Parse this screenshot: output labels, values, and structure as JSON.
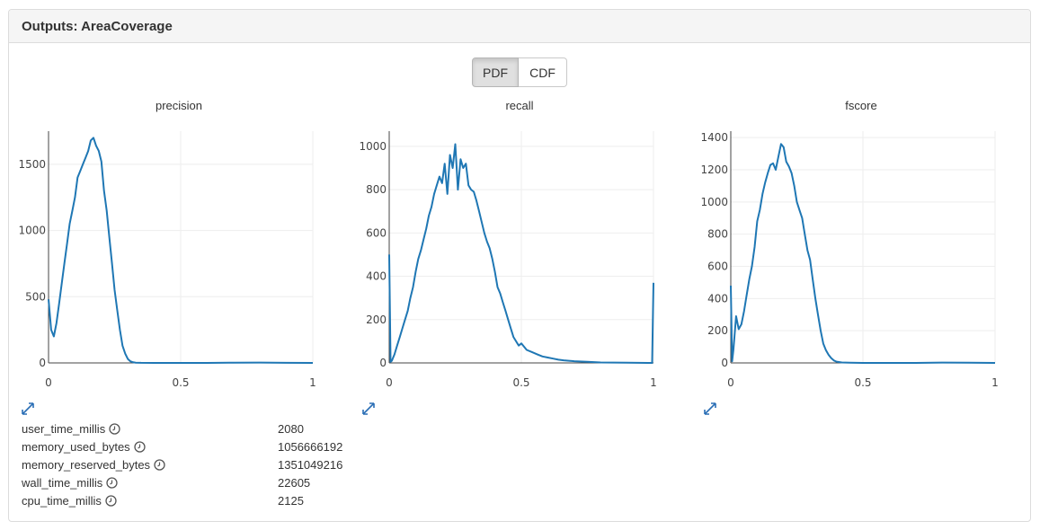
{
  "panel": {
    "title": "Outputs: AreaCoverage"
  },
  "toggle": {
    "pdf_label": "PDF",
    "cdf_label": "CDF",
    "active": "PDF"
  },
  "colors": {
    "line": "#1f77b4",
    "grid": "#eeeeee",
    "axis": "#444444"
  },
  "icons": {
    "expand": "expand-arrows-icon",
    "clock": "clock-icon"
  },
  "chart_data": [
    {
      "type": "line",
      "title": "precision",
      "xlabel": "",
      "ylabel": "",
      "xlim": [
        0,
        1
      ],
      "ylim": [
        0,
        1750
      ],
      "xticks": [
        0,
        0.5,
        1
      ],
      "xtick_labels": [
        "0",
        "0.5",
        "1"
      ],
      "yticks": [
        0,
        500,
        1000,
        1500
      ],
      "ytick_labels": [
        "0",
        "500",
        "1000",
        "1500"
      ],
      "grid": true,
      "x": [
        0,
        0.01,
        0.02,
        0.03,
        0.04,
        0.05,
        0.06,
        0.07,
        0.08,
        0.09,
        0.1,
        0.11,
        0.12,
        0.13,
        0.14,
        0.15,
        0.16,
        0.17,
        0.18,
        0.19,
        0.2,
        0.21,
        0.22,
        0.23,
        0.24,
        0.25,
        0.26,
        0.27,
        0.28,
        0.29,
        0.3,
        0.31,
        0.32,
        0.33,
        0.35,
        0.4,
        0.5,
        0.6,
        0.7,
        0.8,
        0.9,
        1.0
      ],
      "y": [
        480,
        250,
        200,
        300,
        450,
        600,
        750,
        900,
        1050,
        1150,
        1250,
        1400,
        1450,
        1500,
        1550,
        1600,
        1680,
        1700,
        1640,
        1600,
        1520,
        1300,
        1150,
        950,
        750,
        550,
        400,
        250,
        130,
        70,
        30,
        12,
        5,
        2,
        1,
        0,
        0,
        0,
        2,
        3,
        1,
        0
      ]
    },
    {
      "type": "line",
      "title": "recall",
      "xlabel": "",
      "ylabel": "",
      "xlim": [
        0,
        1
      ],
      "ylim": [
        0,
        1070
      ],
      "xticks": [
        0,
        0.5,
        1
      ],
      "xtick_labels": [
        "0",
        "0.5",
        "1"
      ],
      "yticks": [
        0,
        200,
        400,
        600,
        800,
        1000
      ],
      "ytick_labels": [
        "0",
        "200",
        "400",
        "600",
        "800",
        "1000"
      ],
      "grid": true,
      "x": [
        0,
        0.005,
        0.01,
        0.02,
        0.03,
        0.04,
        0.05,
        0.06,
        0.07,
        0.08,
        0.09,
        0.1,
        0.11,
        0.12,
        0.13,
        0.14,
        0.15,
        0.16,
        0.17,
        0.18,
        0.19,
        0.2,
        0.21,
        0.22,
        0.23,
        0.24,
        0.25,
        0.26,
        0.27,
        0.28,
        0.29,
        0.3,
        0.31,
        0.32,
        0.33,
        0.34,
        0.35,
        0.36,
        0.37,
        0.38,
        0.39,
        0.4,
        0.41,
        0.42,
        0.43,
        0.44,
        0.45,
        0.46,
        0.47,
        0.48,
        0.49,
        0.5,
        0.52,
        0.54,
        0.56,
        0.58,
        0.6,
        0.62,
        0.64,
        0.66,
        0.68,
        0.7,
        0.75,
        0.8,
        0.9,
        0.98,
        0.995,
        1.0
      ],
      "y": [
        500,
        5,
        10,
        40,
        80,
        120,
        160,
        200,
        240,
        300,
        350,
        420,
        480,
        520,
        570,
        620,
        680,
        720,
        780,
        820,
        860,
        830,
        920,
        780,
        960,
        900,
        1010,
        800,
        940,
        900,
        920,
        820,
        800,
        790,
        750,
        700,
        650,
        600,
        560,
        530,
        480,
        420,
        350,
        320,
        280,
        240,
        200,
        160,
        120,
        100,
        80,
        90,
        60,
        50,
        40,
        30,
        25,
        20,
        15,
        12,
        10,
        8,
        5,
        2,
        1,
        0,
        0,
        370
      ]
    },
    {
      "type": "line",
      "title": "fscore",
      "xlabel": "",
      "ylabel": "",
      "xlim": [
        0,
        1
      ],
      "ylim": [
        0,
        1440
      ],
      "xticks": [
        0,
        0.5,
        1
      ],
      "xtick_labels": [
        "0",
        "0.5",
        "1"
      ],
      "yticks": [
        0,
        200,
        400,
        600,
        800,
        1000,
        1200,
        1400
      ],
      "ytick_labels": [
        "0",
        "200",
        "400",
        "600",
        "800",
        "1000",
        "1200",
        "1400"
      ],
      "grid": true,
      "x": [
        0,
        0.005,
        0.01,
        0.02,
        0.03,
        0.04,
        0.05,
        0.06,
        0.07,
        0.08,
        0.09,
        0.1,
        0.11,
        0.12,
        0.13,
        0.14,
        0.15,
        0.16,
        0.17,
        0.18,
        0.19,
        0.2,
        0.21,
        0.22,
        0.23,
        0.24,
        0.25,
        0.26,
        0.27,
        0.28,
        0.29,
        0.3,
        0.31,
        0.32,
        0.33,
        0.34,
        0.35,
        0.36,
        0.37,
        0.38,
        0.39,
        0.4,
        0.42,
        0.45,
        0.5,
        0.6,
        0.7,
        0.8,
        0.9,
        1.0
      ],
      "y": [
        480,
        10,
        80,
        290,
        210,
        240,
        320,
        420,
        520,
        600,
        720,
        880,
        950,
        1050,
        1120,
        1180,
        1230,
        1240,
        1200,
        1280,
        1360,
        1340,
        1250,
        1220,
        1180,
        1100,
        1000,
        950,
        900,
        800,
        700,
        640,
        520,
        400,
        300,
        200,
        120,
        80,
        50,
        30,
        15,
        8,
        3,
        1,
        0,
        0,
        0,
        2,
        1,
        0
      ]
    }
  ],
  "metrics": [
    {
      "name": "user_time_millis",
      "value": "2080"
    },
    {
      "name": "memory_used_bytes",
      "value": "1056666192"
    },
    {
      "name": "memory_reserved_bytes",
      "value": "1351049216"
    },
    {
      "name": "wall_time_millis",
      "value": "22605"
    },
    {
      "name": "cpu_time_millis",
      "value": "2125"
    }
  ]
}
